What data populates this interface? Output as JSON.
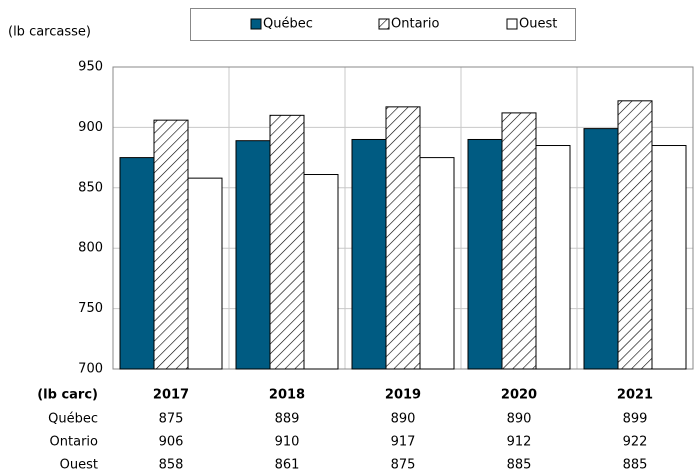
{
  "chart_data": {
    "type": "bar",
    "y_label": "(lb carcasse)",
    "table_header": "(lb carc)",
    "categories": [
      "2017",
      "2018",
      "2019",
      "2020",
      "2021"
    ],
    "series": [
      {
        "name": "Québec",
        "color": "#005b82",
        "values": [
          875,
          889,
          890,
          890,
          899
        ]
      },
      {
        "name": "Ontario",
        "color": "#ffffff",
        "hatch": true,
        "values": [
          906,
          910,
          917,
          912,
          922
        ]
      },
      {
        "name": "Ouest",
        "color": "#ffffff",
        "values": [
          858,
          861,
          875,
          885,
          885
        ]
      }
    ],
    "ylim": [
      700,
      950
    ],
    "yticks": [
      700,
      750,
      800,
      850,
      900,
      950
    ],
    "grid": true,
    "legend": "top"
  }
}
